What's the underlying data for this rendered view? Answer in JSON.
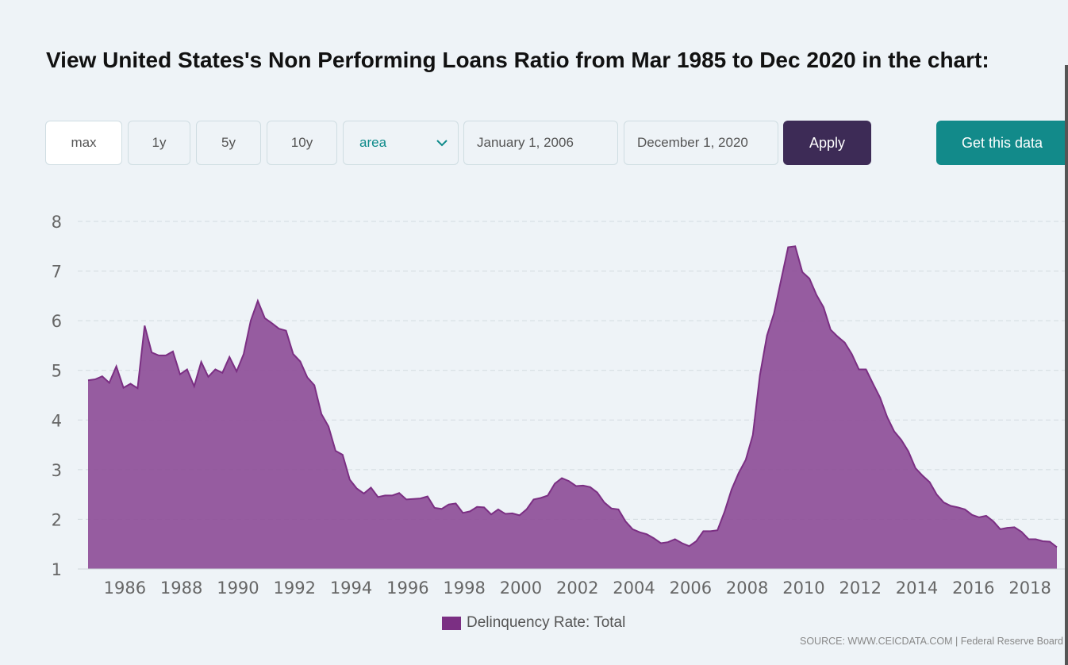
{
  "title": "View United States's Non Performing Loans Ratio from Mar 1985 to Dec 2020 in the chart:",
  "controls": {
    "range_buttons": [
      "max",
      "1y",
      "5y",
      "10y"
    ],
    "active_range": "max",
    "chart_type_select": "area",
    "start_date": "January 1, 2006",
    "end_date": "December 1, 2020",
    "apply_label": "Apply",
    "get_data_label": "Get this data"
  },
  "source_text": "SOURCE: WWW.CEICDATA.COM | Federal Reserve Board",
  "colors": {
    "area_fill": "#8e4f98",
    "area_stroke": "#7b2f83",
    "apply_bg": "#3d2b56",
    "get_data_bg": "#128a8a"
  },
  "chart_data": {
    "type": "area",
    "title": "",
    "xlabel": "",
    "ylabel": "",
    "ylim": [
      1,
      8
    ],
    "yticks": [
      1,
      2,
      3,
      4,
      5,
      6,
      7,
      8
    ],
    "xticks": [
      1986,
      1988,
      1990,
      1992,
      1994,
      1996,
      1998,
      2000,
      2002,
      2004,
      2006,
      2008,
      2010,
      2012,
      2014,
      2016,
      2018
    ],
    "grid": true,
    "legend_position": "bottom",
    "series": [
      {
        "name": "Delinquency Rate: Total",
        "points": [
          [
            1985.0,
            4.8
          ],
          [
            1985.25,
            4.82
          ],
          [
            1985.5,
            4.88
          ],
          [
            1985.75,
            4.75
          ],
          [
            1986.0,
            5.08
          ],
          [
            1986.25,
            4.65
          ],
          [
            1986.5,
            4.73
          ],
          [
            1986.75,
            4.64
          ],
          [
            1987.0,
            5.9
          ],
          [
            1987.25,
            5.36
          ],
          [
            1987.5,
            5.3
          ],
          [
            1987.75,
            5.3
          ],
          [
            1988.0,
            5.38
          ],
          [
            1988.25,
            4.92
          ],
          [
            1988.5,
            5.02
          ],
          [
            1988.75,
            4.68
          ],
          [
            1989.0,
            5.17
          ],
          [
            1989.25,
            4.87
          ],
          [
            1989.5,
            5.02
          ],
          [
            1989.75,
            4.95
          ],
          [
            1990.0,
            5.27
          ],
          [
            1990.25,
            4.98
          ],
          [
            1990.5,
            5.33
          ],
          [
            1990.75,
            6.0
          ],
          [
            1991.0,
            6.4
          ],
          [
            1991.25,
            6.05
          ],
          [
            1991.5,
            5.95
          ],
          [
            1991.75,
            5.84
          ],
          [
            1992.0,
            5.8
          ],
          [
            1992.25,
            5.33
          ],
          [
            1992.5,
            5.18
          ],
          [
            1992.75,
            4.86
          ],
          [
            1993.0,
            4.7
          ],
          [
            1993.25,
            4.12
          ],
          [
            1993.5,
            3.87
          ],
          [
            1993.75,
            3.38
          ],
          [
            1994.0,
            3.3
          ],
          [
            1994.25,
            2.8
          ],
          [
            1994.5,
            2.62
          ],
          [
            1994.75,
            2.52
          ],
          [
            1995.0,
            2.64
          ],
          [
            1995.25,
            2.45
          ],
          [
            1995.5,
            2.48
          ],
          [
            1995.75,
            2.48
          ],
          [
            1996.0,
            2.53
          ],
          [
            1996.25,
            2.4
          ],
          [
            1996.5,
            2.41
          ],
          [
            1996.75,
            2.42
          ],
          [
            1997.0,
            2.46
          ],
          [
            1997.25,
            2.23
          ],
          [
            1997.5,
            2.21
          ],
          [
            1997.75,
            2.3
          ],
          [
            1998.0,
            2.32
          ],
          [
            1998.25,
            2.13
          ],
          [
            1998.5,
            2.16
          ],
          [
            1998.75,
            2.25
          ],
          [
            1999.0,
            2.24
          ],
          [
            1999.25,
            2.1
          ],
          [
            1999.5,
            2.2
          ],
          [
            1999.75,
            2.11
          ],
          [
            2000.0,
            2.12
          ],
          [
            2000.25,
            2.08
          ],
          [
            2000.5,
            2.2
          ],
          [
            2000.75,
            2.4
          ],
          [
            2001.0,
            2.43
          ],
          [
            2001.25,
            2.48
          ],
          [
            2001.5,
            2.72
          ],
          [
            2001.75,
            2.83
          ],
          [
            2002.0,
            2.77
          ],
          [
            2002.25,
            2.67
          ],
          [
            2002.5,
            2.68
          ],
          [
            2002.75,
            2.65
          ],
          [
            2003.0,
            2.54
          ],
          [
            2003.25,
            2.34
          ],
          [
            2003.5,
            2.22
          ],
          [
            2003.75,
            2.2
          ],
          [
            2004.0,
            1.96
          ],
          [
            2004.25,
            1.8
          ],
          [
            2004.5,
            1.74
          ],
          [
            2004.75,
            1.7
          ],
          [
            2005.0,
            1.62
          ],
          [
            2005.25,
            1.52
          ],
          [
            2005.5,
            1.54
          ],
          [
            2005.75,
            1.6
          ],
          [
            2006.0,
            1.52
          ],
          [
            2006.25,
            1.46
          ],
          [
            2006.5,
            1.56
          ],
          [
            2006.75,
            1.76
          ],
          [
            2007.0,
            1.76
          ],
          [
            2007.25,
            1.78
          ],
          [
            2007.5,
            2.15
          ],
          [
            2007.75,
            2.6
          ],
          [
            2008.0,
            2.93
          ],
          [
            2008.25,
            3.2
          ],
          [
            2008.5,
            3.7
          ],
          [
            2008.75,
            4.9
          ],
          [
            2009.0,
            5.7
          ],
          [
            2009.25,
            6.15
          ],
          [
            2009.5,
            6.82
          ],
          [
            2009.75,
            7.48
          ],
          [
            2010.0,
            7.5
          ],
          [
            2010.25,
            6.98
          ],
          [
            2010.5,
            6.85
          ],
          [
            2010.75,
            6.52
          ],
          [
            2011.0,
            6.27
          ],
          [
            2011.25,
            5.82
          ],
          [
            2011.5,
            5.68
          ],
          [
            2011.75,
            5.56
          ],
          [
            2012.0,
            5.33
          ],
          [
            2012.25,
            5.02
          ],
          [
            2012.5,
            5.02
          ],
          [
            2012.75,
            4.73
          ],
          [
            2013.0,
            4.45
          ],
          [
            2013.25,
            4.06
          ],
          [
            2013.5,
            3.77
          ],
          [
            2013.75,
            3.6
          ],
          [
            2014.0,
            3.37
          ],
          [
            2014.25,
            3.03
          ],
          [
            2014.5,
            2.88
          ],
          [
            2014.75,
            2.75
          ],
          [
            2015.0,
            2.5
          ],
          [
            2015.25,
            2.34
          ],
          [
            2015.5,
            2.27
          ],
          [
            2015.75,
            2.24
          ],
          [
            2016.0,
            2.2
          ],
          [
            2016.25,
            2.09
          ],
          [
            2016.5,
            2.04
          ],
          [
            2016.75,
            2.07
          ],
          [
            2017.0,
            1.96
          ],
          [
            2017.25,
            1.8
          ],
          [
            2017.5,
            1.83
          ],
          [
            2017.75,
            1.84
          ],
          [
            2018.0,
            1.75
          ],
          [
            2018.25,
            1.6
          ],
          [
            2018.5,
            1.6
          ],
          [
            2018.75,
            1.56
          ],
          [
            2019.0,
            1.55
          ],
          [
            2019.25,
            1.44
          ]
        ]
      }
    ]
  }
}
